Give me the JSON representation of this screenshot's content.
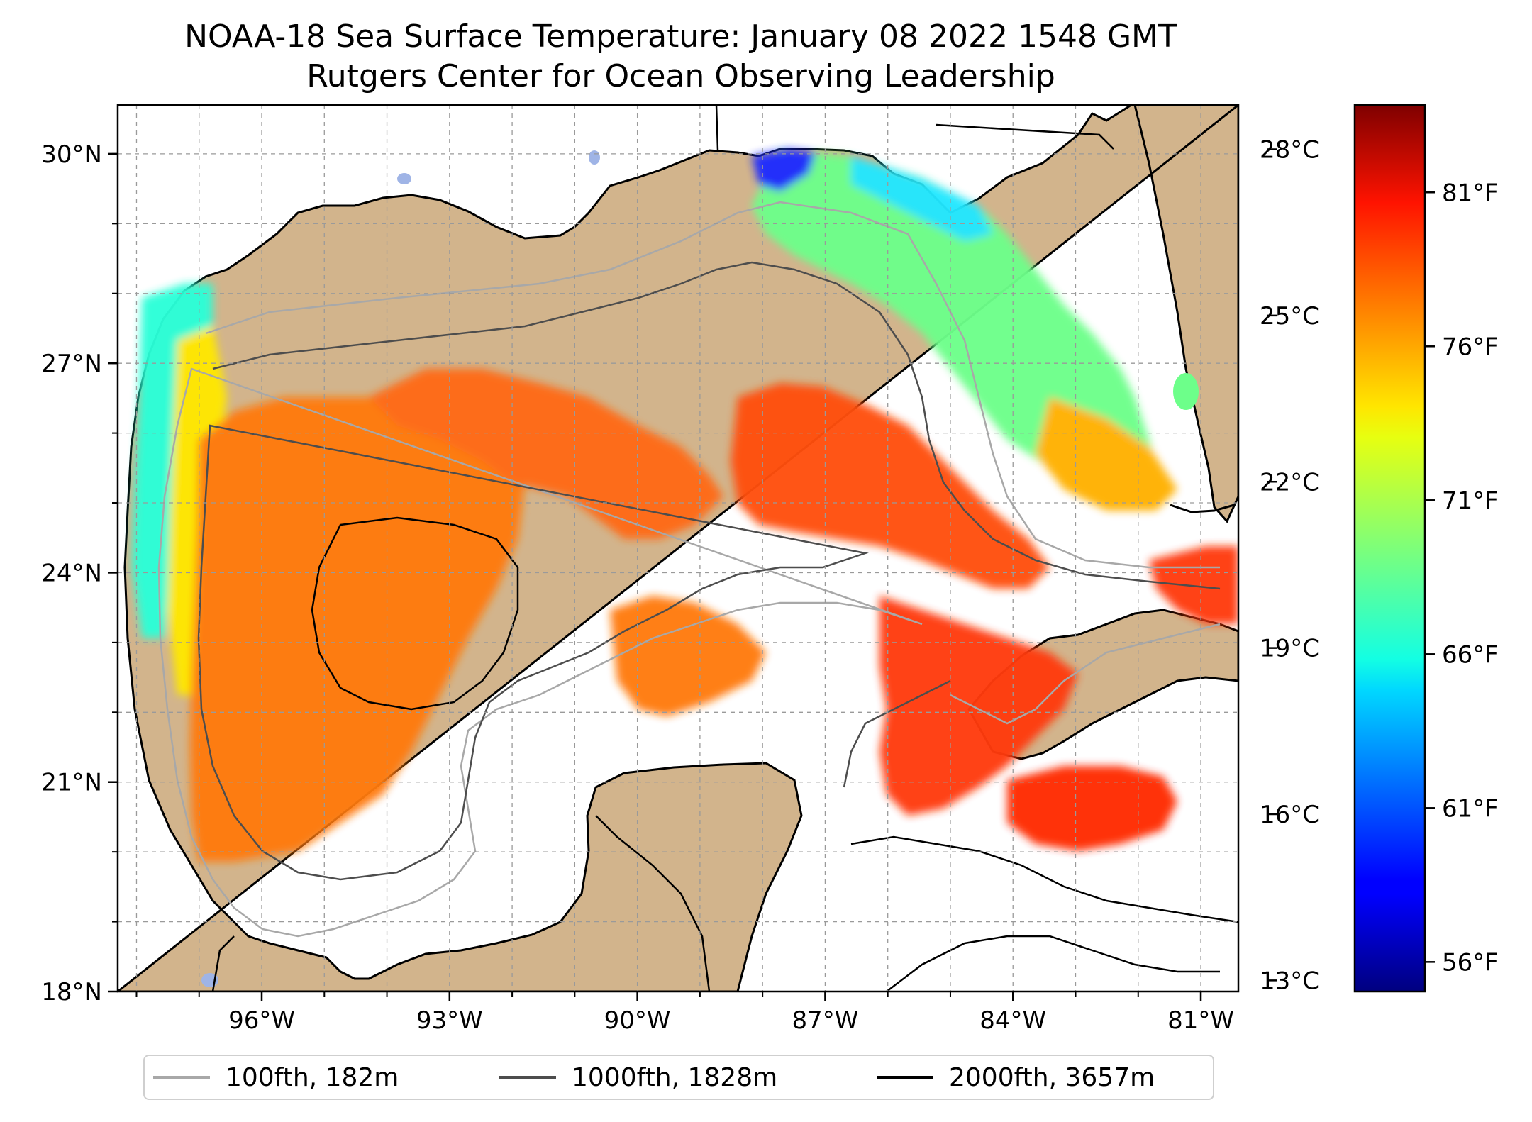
{
  "title": "NOAA-18 Sea Surface Temperature: January 08 2022 1548 GMT",
  "subtitle": "Rutgers Center for Ocean Observing Leadership",
  "map": {
    "region": "Gulf of Mexico",
    "land_color": "#d2b48c",
    "water_nodata_color": "#ffffff",
    "gridlines": true,
    "lat_range": [
      18.0,
      30.7
    ],
    "lon_range": [
      -98.3,
      -80.4
    ],
    "lat_ticks": [
      {
        "value": 30,
        "label": "30°N"
      },
      {
        "value": 27,
        "label": "27°N"
      },
      {
        "value": 24,
        "label": "24°N"
      },
      {
        "value": 21,
        "label": "21°N"
      },
      {
        "value": 18,
        "label": "18°N"
      }
    ],
    "lon_ticks": [
      {
        "value": -96,
        "label": "96°W"
      },
      {
        "value": -93,
        "label": "93°W"
      },
      {
        "value": -90,
        "label": "90°W"
      },
      {
        "value": -87,
        "label": "87°W"
      },
      {
        "value": -84,
        "label": "84°W"
      },
      {
        "value": -81,
        "label": "81°W"
      }
    ]
  },
  "colorbar": {
    "colormap": "jet",
    "range_c": [
      12.8,
      28.8
    ],
    "celsius_ticks": [
      {
        "value": 28,
        "label": "28°C"
      },
      {
        "value": 25,
        "label": "25°C"
      },
      {
        "value": 22,
        "label": "22°C"
      },
      {
        "value": 19,
        "label": "19°C"
      },
      {
        "value": 16,
        "label": "16°C"
      },
      {
        "value": 13,
        "label": "13°C"
      }
    ],
    "fahrenheit_ticks": [
      {
        "value": 81,
        "label": "81°F"
      },
      {
        "value": 76,
        "label": "76°F"
      },
      {
        "value": 71,
        "label": "71°F"
      },
      {
        "value": 66,
        "label": "66°F"
      },
      {
        "value": 61,
        "label": "61°F"
      },
      {
        "value": 56,
        "label": "56°F"
      }
    ]
  },
  "legend": [
    {
      "label": "100fth, 182m",
      "color": "#a8a8a8"
    },
    {
      "label": "1000fth, 1828m",
      "color": "#4d4d4d"
    },
    {
      "label": "2000fth, 3657m",
      "color": "#000000"
    }
  ]
}
